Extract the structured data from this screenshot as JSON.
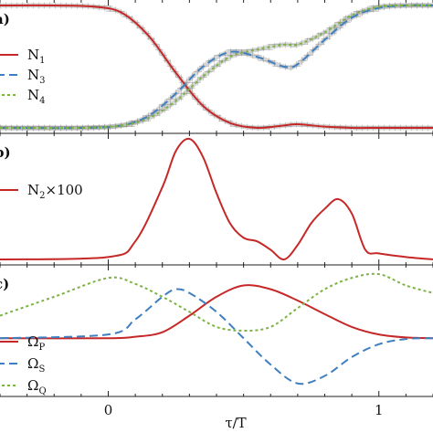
{
  "chart_data": [
    {
      "type": "line",
      "panel": "top",
      "panel_label": "(a)",
      "legend_position": "left",
      "series": [
        {
          "name": "N",
          "sub": "1",
          "color": "#c62828",
          "dash": "solid",
          "x": [
            -0.4,
            -0.2,
            -0.05,
            0.05,
            0.15,
            0.25,
            0.35,
            0.45,
            0.55,
            0.65,
            0.7,
            0.8,
            0.9,
            1.0,
            1.1,
            1.2
          ],
          "y": [
            1.0,
            1.0,
            0.99,
            0.94,
            0.75,
            0.45,
            0.18,
            0.04,
            0.0,
            0.02,
            0.03,
            0.01,
            0.0,
            0.0,
            0.0,
            0.0
          ]
        },
        {
          "name": "N",
          "sub": "3",
          "color": "#3f7fc0",
          "dash": "long",
          "x": [
            -0.4,
            -0.1,
            0.05,
            0.15,
            0.25,
            0.35,
            0.45,
            0.55,
            0.65,
            0.7,
            0.8,
            0.9,
            1.0,
            1.1,
            1.2
          ],
          "y": [
            0.0,
            0.0,
            0.02,
            0.1,
            0.28,
            0.5,
            0.62,
            0.58,
            0.5,
            0.52,
            0.72,
            0.9,
            0.98,
            1.0,
            1.0
          ]
        },
        {
          "name": "N",
          "sub": "4",
          "color": "#7cb342",
          "dash": "dot",
          "x": [
            -0.4,
            -0.1,
            0.05,
            0.15,
            0.25,
            0.35,
            0.45,
            0.55,
            0.65,
            0.7,
            0.8,
            0.9,
            1.0,
            1.1,
            1.2
          ],
          "y": [
            0.0,
            0.0,
            0.02,
            0.08,
            0.22,
            0.42,
            0.58,
            0.64,
            0.68,
            0.68,
            0.78,
            0.92,
            0.99,
            1.0,
            1.0
          ]
        }
      ],
      "hatched_series": [
        "N1",
        "N3",
        "N4"
      ],
      "ylim": [
        0,
        1
      ]
    },
    {
      "type": "line",
      "panel": "middle",
      "panel_label": "(b)",
      "legend_position": "left",
      "series": [
        {
          "name": "N",
          "sub": "2",
          "suffix": "×100",
          "color": "#c62828",
          "dash": "solid",
          "x": [
            -0.4,
            0.0,
            0.1,
            0.2,
            0.25,
            0.3,
            0.35,
            0.4,
            0.45,
            0.5,
            0.55,
            0.6,
            0.65,
            0.7,
            0.75,
            0.8,
            0.85,
            0.9,
            0.95,
            1.0,
            1.1,
            1.2
          ],
          "y": [
            0.0,
            0.02,
            0.15,
            0.6,
            0.9,
            1.0,
            0.85,
            0.55,
            0.3,
            0.18,
            0.15,
            0.08,
            0.0,
            0.12,
            0.3,
            0.42,
            0.5,
            0.38,
            0.08,
            0.05,
            0.02,
            0.0
          ]
        }
      ],
      "ylim": [
        0,
        1
      ]
    },
    {
      "type": "line",
      "panel": "bottom",
      "panel_label": "(c)",
      "legend_position": "left",
      "series": [
        {
          "name": "Ω",
          "sub": "P",
          "color": "#c62828",
          "dash": "solid",
          "x": [
            -0.4,
            0.0,
            0.1,
            0.2,
            0.3,
            0.4,
            0.5,
            0.6,
            0.7,
            0.8,
            0.9,
            1.0,
            1.1,
            1.2
          ],
          "y": [
            0.0,
            0.0,
            0.02,
            0.08,
            0.3,
            0.55,
            0.7,
            0.65,
            0.5,
            0.32,
            0.15,
            0.05,
            0.01,
            0.0
          ]
        },
        {
          "name": "Ω",
          "sub": "S",
          "color": "#3f7fc0",
          "dash": "long",
          "x": [
            -0.4,
            0.0,
            0.1,
            0.2,
            0.25,
            0.3,
            0.4,
            0.5,
            0.6,
            0.7,
            0.8,
            0.9,
            1.0,
            1.1,
            1.2
          ],
          "y": [
            0.0,
            0.05,
            0.25,
            0.55,
            0.65,
            0.6,
            0.35,
            0.0,
            -0.35,
            -0.6,
            -0.5,
            -0.25,
            -0.08,
            -0.01,
            0.0
          ]
        },
        {
          "name": "Ω",
          "sub": "Q",
          "color": "#7cb342",
          "dash": "dot",
          "x": [
            -0.4,
            -0.2,
            0.0,
            0.1,
            0.2,
            0.3,
            0.4,
            0.5,
            0.6,
            0.7,
            0.8,
            0.9,
            1.0,
            1.1,
            1.2
          ],
          "y": [
            0.3,
            0.55,
            0.8,
            0.72,
            0.55,
            0.35,
            0.15,
            0.1,
            0.15,
            0.4,
            0.65,
            0.8,
            0.85,
            0.7,
            0.6
          ]
        }
      ],
      "ylim": [
        -0.7,
        0.9
      ]
    }
  ],
  "axes": {
    "xlabel": "τ/T",
    "xlim": [
      -0.4,
      1.2
    ],
    "xticks": [
      0,
      1
    ],
    "xtick_labels": [
      "0",
      "1"
    ]
  }
}
